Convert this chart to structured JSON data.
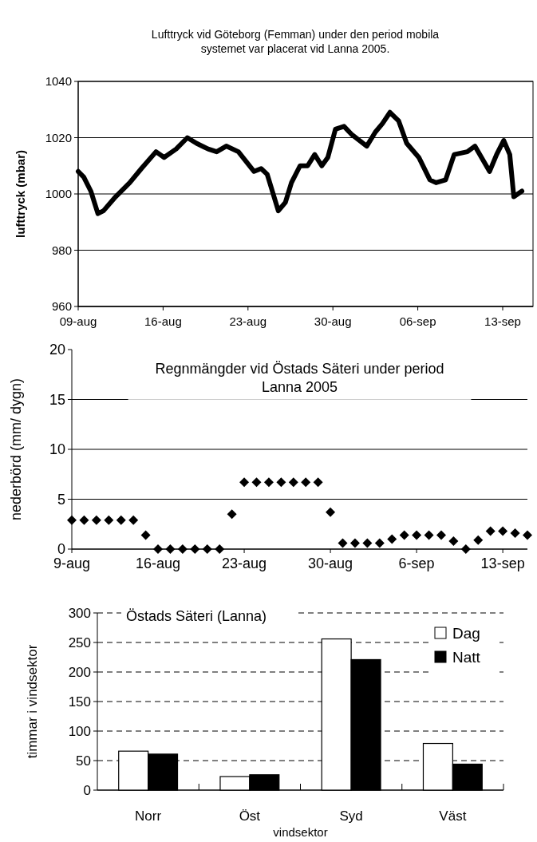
{
  "chart_data": [
    {
      "type": "line",
      "title": "Lufttryck vid Göteborg (Femman) under den period mobila systemet var placerat vid Lanna 2005.",
      "ylabel": "lufttryck (mbar)",
      "color": "#000000",
      "line_style": "solid",
      "grid": "y",
      "x": [
        "2005-08-09T00:00",
        "2005-08-09T11:00",
        "2005-08-10T01:00",
        "2005-08-10T15:00",
        "2005-08-11T02:00",
        "2005-08-12T02:00",
        "2005-08-13T06:00",
        "2005-08-14T05:00",
        "2005-08-15T10:00",
        "2005-08-16T02:00",
        "2005-08-17T02:00",
        "2005-08-18T00:00",
        "2005-08-18T18:00",
        "2005-08-19T17:00",
        "2005-08-20T10:00",
        "2005-08-21T05:00",
        "2005-08-22T05:00",
        "2005-08-23T12:00",
        "2005-08-24T02:00",
        "2005-08-24T14:00",
        "2005-08-25T12:00",
        "2005-08-26T02:00",
        "2005-08-26T14:00",
        "2005-08-27T07:00",
        "2005-08-27T22:00",
        "2005-08-28T12:00",
        "2005-08-29T02:00",
        "2005-08-29T14:00",
        "2005-08-30T05:00",
        "2005-08-30T22:00",
        "2005-08-31T14:00",
        "2005-09-01T19:00",
        "2005-09-02T12:00",
        "2005-09-03T02:00",
        "2005-09-03T17:00",
        "2005-09-04T10:00",
        "2005-09-05T02:00",
        "2005-09-06T02:00",
        "2005-09-07T00:00",
        "2005-09-07T12:00",
        "2005-09-08T07:00",
        "2005-09-09T00:00",
        "2005-09-10T02:00",
        "2005-09-10T17:00",
        "2005-09-11T22:00",
        "2005-09-12T12:00",
        "2005-09-13T02:00",
        "2005-09-13T14:00",
        "2005-09-13T22:00",
        "2005-09-14T14:00"
      ],
      "values": [
        1008,
        1006,
        1001,
        993,
        994,
        999,
        1004,
        1009,
        1015,
        1013,
        1016,
        1020,
        1018,
        1016,
        1015,
        1017,
        1015,
        1008,
        1009,
        1007,
        994,
        997,
        1004,
        1010,
        1010,
        1014,
        1010,
        1013,
        1023,
        1024,
        1021,
        1017,
        1022,
        1025,
        1029,
        1026,
        1018,
        1013,
        1005,
        1004,
        1005,
        1014,
        1015,
        1017,
        1008,
        1014,
        1019,
        1014,
        999,
        1001
      ],
      "xlim": [
        "2005-08-09",
        "2005-09-15T12:00"
      ],
      "xticks": [
        {
          "value": "2005-08-09",
          "label": "09-aug"
        },
        {
          "value": "2005-08-16",
          "label": "16-aug"
        },
        {
          "value": "2005-08-23",
          "label": "23-aug"
        },
        {
          "value": "2005-08-30",
          "label": "30-aug"
        },
        {
          "value": "2005-09-06",
          "label": "06-sep"
        },
        {
          "value": "2005-09-13",
          "label": "13-sep"
        }
      ],
      "ylim": [
        960,
        1040
      ],
      "yticks": [
        960,
        980,
        1000,
        1020,
        1040
      ]
    },
    {
      "type": "scatter",
      "title": "Regnmängder vid Östads Säteri under period Lanna 2005",
      "ylabel": "nederbörd (mm/ dygn)",
      "color": "#000000",
      "marker": "diamond",
      "grid": "y",
      "x": [
        "2005-08-09",
        "2005-08-10",
        "2005-08-11",
        "2005-08-12",
        "2005-08-13",
        "2005-08-14",
        "2005-08-15",
        "2005-08-16",
        "2005-08-17",
        "2005-08-18",
        "2005-08-19",
        "2005-08-20",
        "2005-08-21",
        "2005-08-22",
        "2005-08-23",
        "2005-08-24",
        "2005-08-25",
        "2005-08-26",
        "2005-08-27",
        "2005-08-28",
        "2005-08-29",
        "2005-08-30",
        "2005-08-31",
        "2005-09-01",
        "2005-09-02",
        "2005-09-03",
        "2005-09-04",
        "2005-09-05",
        "2005-09-06",
        "2005-09-07",
        "2005-09-08",
        "2005-09-09",
        "2005-09-10",
        "2005-09-11",
        "2005-09-12",
        "2005-09-13",
        "2005-09-14",
        "2005-09-15"
      ],
      "values": [
        2.9,
        2.9,
        2.9,
        2.9,
        2.9,
        2.9,
        1.4,
        0,
        0,
        0,
        0,
        0,
        0,
        3.5,
        6.7,
        6.7,
        6.7,
        6.7,
        6.7,
        6.7,
        6.7,
        3.7,
        0.6,
        0.6,
        0.6,
        0.6,
        1.0,
        1.4,
        1.4,
        1.4,
        1.4,
        0.8,
        0,
        0.9,
        1.8,
        1.8,
        1.6,
        1.4
      ],
      "xlim": [
        "2005-08-09",
        "2005-09-15"
      ],
      "xticks": [
        {
          "value": "2005-08-09",
          "label": "9-aug"
        },
        {
          "value": "2005-08-16",
          "label": "16-aug"
        },
        {
          "value": "2005-08-23",
          "label": "23-aug"
        },
        {
          "value": "2005-08-30",
          "label": "30-aug"
        },
        {
          "value": "2005-09-06",
          "label": "6-sep"
        },
        {
          "value": "2005-09-13",
          "label": "13-sep"
        }
      ],
      "ylim": [
        0,
        20
      ],
      "yticks": [
        0,
        5,
        10,
        15,
        20
      ]
    },
    {
      "type": "bar",
      "title": "Östads Säteri (Lanna)",
      "xlabel": "vindsektor",
      "ylabel": "timmar i vindsektor",
      "categories": [
        "Norr",
        "Öst",
        "Syd",
        "Väst"
      ],
      "grid": "y",
      "legend": "top right",
      "series": [
        {
          "name": "Dag",
          "color": "#ffffff",
          "values": [
            66,
            23,
            256,
            79
          ]
        },
        {
          "name": "Natt",
          "color": "#000000",
          "values": [
            61,
            26,
            221,
            44
          ]
        }
      ],
      "ylim": [
        0,
        300
      ],
      "yticks": [
        0,
        50,
        100,
        150,
        200,
        250,
        300
      ]
    }
  ]
}
